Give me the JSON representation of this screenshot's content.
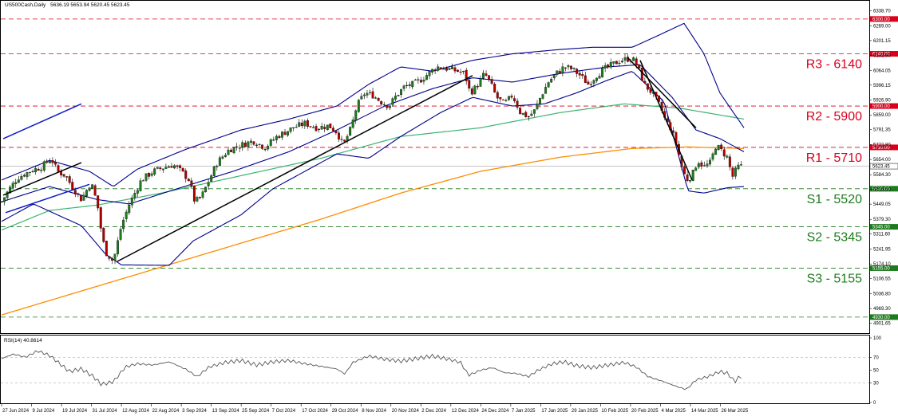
{
  "chart_data": {
    "type": "candlestick",
    "header": {
      "symbol": "US500Cash,Daily",
      "ohlc": "5636.19 5653.94 5620.45 5623.45"
    },
    "price_axis": {
      "ylim": [
        4860,
        6380
      ],
      "ticks": [
        "6338.70",
        "6269.00",
        "6201.15",
        "6132.60",
        "6064.05",
        "5996.15",
        "5926.90",
        "5859.00",
        "5791.35",
        "5722.80",
        "5654.00",
        "5584.30",
        "5516.60",
        "5449.05",
        "5379.30",
        "5311.60",
        "5241.95",
        "5174.10",
        "5106.55",
        "5036.80",
        "4969.30",
        "4901.65"
      ],
      "current_price_label": "5623.45"
    },
    "x_axis": {
      "tick_labels": [
        "27 Jun 2024",
        "9 Jul 2024",
        "19 Jul 2024",
        "31 Jul 2024",
        "12 Aug 2024",
        "22 Aug 2024",
        "3 Sep 2024",
        "13 Sep 2024",
        "25 Sep 2024",
        "7 Oct 2024",
        "17 Oct 2024",
        "29 Oct 2024",
        "8 Nov 2024",
        "20 Nov 2024",
        "2 Dec 2024",
        "12 Dec 2024",
        "24 Dec 2024",
        "7 Jan 2025",
        "17 Jan 2025",
        "29 Jan 2025",
        "10 Feb 2025",
        "20 Feb 2025",
        "4 Mar 2025",
        "14 Mar 2025",
        "26 Mar 2025"
      ]
    },
    "levels": [
      {
        "name": "R3 - 6140",
        "value": 6140,
        "axis_label": "6140.00",
        "color": "#d9001b"
      },
      {
        "name": "R2 - 5900",
        "value": 5900,
        "axis_label": "5900.00",
        "color": "#d9001b"
      },
      {
        "name": "R1 - 5710",
        "value": 5710,
        "axis_label": "5710.00",
        "color": "#d9001b"
      },
      {
        "name": "S1 - 5520",
        "value": 5520,
        "axis_label": "5520.00",
        "color": "#1e7a1e"
      },
      {
        "name": "S2 - 5345",
        "value": 5345,
        "axis_label": "5345.00",
        "color": "#1e7a1e"
      },
      {
        "name": "S3 - 5155",
        "value": 5155,
        "axis_label": "5155.00",
        "color": "#1e7a1e"
      },
      {
        "name": "",
        "value": 6300,
        "axis_label": "6300.00",
        "color": "#d9001b"
      },
      {
        "name": "",
        "value": 4930,
        "axis_label": "4930.00",
        "color": "#1e7a1e"
      }
    ],
    "close_path": [
      [
        0,
        5460
      ],
      [
        10,
        5520
      ],
      [
        20,
        5570
      ],
      [
        35,
        5600
      ],
      [
        50,
        5620
      ],
      [
        62,
        5660
      ],
      [
        70,
        5600
      ],
      [
        80,
        5580
      ],
      [
        90,
        5520
      ],
      [
        100,
        5470
      ],
      [
        112,
        5550
      ],
      [
        120,
        5450
      ],
      [
        125,
        5320
      ],
      [
        130,
        5230
      ],
      [
        140,
        5186
      ],
      [
        150,
        5350
      ],
      [
        160,
        5450
      ],
      [
        175,
        5560
      ],
      [
        190,
        5600
      ],
      [
        205,
        5620
      ],
      [
        215,
        5630
      ],
      [
        225,
        5600
      ],
      [
        235,
        5560
      ],
      [
        242,
        5460
      ],
      [
        250,
        5480
      ],
      [
        260,
        5560
      ],
      [
        270,
        5640
      ],
      [
        285,
        5700
      ],
      [
        300,
        5720
      ],
      [
        315,
        5740
      ],
      [
        330,
        5710
      ],
      [
        345,
        5760
      ],
      [
        355,
        5780
      ],
      [
        365,
        5800
      ],
      [
        380,
        5820
      ],
      [
        395,
        5800
      ],
      [
        410,
        5810
      ],
      [
        420,
        5780
      ],
      [
        428,
        5720
      ],
      [
        438,
        5800
      ],
      [
        445,
        5900
      ],
      [
        455,
        5960
      ],
      [
        465,
        5950
      ],
      [
        475,
        5920
      ],
      [
        485,
        5900
      ],
      [
        495,
        5950
      ],
      [
        505,
        5990
      ],
      [
        515,
        6000
      ],
      [
        525,
        6020
      ],
      [
        535,
        6050
      ],
      [
        545,
        6080
      ],
      [
        560,
        6070
      ],
      [
        572,
        6060
      ],
      [
        580,
        6050
      ],
      [
        587,
        5960
      ],
      [
        595,
        5990
      ],
      [
        605,
        6050
      ],
      [
        612,
        6010
      ],
      [
        620,
        5940
      ],
      [
        630,
        5910
      ],
      [
        640,
        5950
      ],
      [
        650,
        5870
      ],
      [
        660,
        5850
      ],
      [
        668,
        5880
      ],
      [
        675,
        5940
      ],
      [
        685,
        6010
      ],
      [
        695,
        6050
      ],
      [
        705,
        6080
      ],
      [
        715,
        6070
      ],
      [
        725,
        6040
      ],
      [
        735,
        6000
      ],
      [
        745,
        6040
      ],
      [
        755,
        6070
      ],
      [
        765,
        6090
      ],
      [
        775,
        6110
      ],
      [
        790,
        6120
      ],
      [
        797,
        6080
      ],
      [
        805,
        6000
      ],
      [
        815,
        5960
      ],
      [
        825,
        5900
      ],
      [
        832,
        5830
      ],
      [
        838,
        5800
      ],
      [
        845,
        5730
      ],
      [
        852,
        5620
      ],
      [
        858,
        5560
      ],
      [
        865,
        5580
      ],
      [
        872,
        5650
      ],
      [
        880,
        5620
      ],
      [
        888,
        5640
      ],
      [
        895,
        5720
      ],
      [
        903,
        5690
      ],
      [
        910,
        5660
      ],
      [
        915,
        5570
      ],
      [
        922,
        5620
      ],
      [
        928,
        5623
      ]
    ],
    "ma200": [
      [
        0,
        4940
      ],
      [
        100,
        5050
      ],
      [
        200,
        5160
      ],
      [
        300,
        5270
      ],
      [
        400,
        5380
      ],
      [
        500,
        5500
      ],
      [
        600,
        5600
      ],
      [
        700,
        5665
      ],
      [
        790,
        5705
      ],
      [
        860,
        5712
      ],
      [
        930,
        5705
      ]
    ],
    "ma100": [
      [
        0,
        5330
      ],
      [
        60,
        5420
      ],
      [
        120,
        5445
      ],
      [
        200,
        5500
      ],
      [
        300,
        5580
      ],
      [
        400,
        5660
      ],
      [
        500,
        5760
      ],
      [
        600,
        5800
      ],
      [
        700,
        5870
      ],
      [
        780,
        5910
      ],
      [
        850,
        5890
      ],
      [
        930,
        5840
      ]
    ],
    "bb_upper": [
      [
        0,
        5560
      ],
      [
        60,
        5650
      ],
      [
        110,
        5600
      ],
      [
        140,
        5530
      ],
      [
        170,
        5610
      ],
      [
        230,
        5700
      ],
      [
        300,
        5790
      ],
      [
        360,
        5840
      ],
      [
        420,
        5900
      ],
      [
        460,
        6000
      ],
      [
        500,
        6080
      ],
      [
        540,
        6060
      ],
      [
        590,
        6110
      ],
      [
        640,
        6140
      ],
      [
        700,
        6160
      ],
      [
        740,
        6170
      ],
      [
        790,
        6170
      ],
      [
        820,
        6220
      ],
      [
        855,
        6280
      ],
      [
        880,
        6140
      ],
      [
        900,
        5960
      ],
      [
        930,
        5800
      ]
    ],
    "bb_lower": [
      [
        0,
        5370
      ],
      [
        40,
        5450
      ],
      [
        100,
        5350
      ],
      [
        130,
        5220
      ],
      [
        150,
        5170
      ],
      [
        210,
        5168
      ],
      [
        240,
        5280
      ],
      [
        300,
        5400
      ],
      [
        340,
        5520
      ],
      [
        380,
        5600
      ],
      [
        420,
        5680
      ],
      [
        460,
        5660
      ],
      [
        500,
        5760
      ],
      [
        550,
        5870
      ],
      [
        590,
        5940
      ],
      [
        640,
        5900
      ],
      [
        680,
        5910
      ],
      [
        720,
        5960
      ],
      [
        760,
        6020
      ],
      [
        790,
        6060
      ],
      [
        830,
        5920
      ],
      [
        860,
        5510
      ],
      [
        880,
        5500
      ],
      [
        910,
        5525
      ],
      [
        930,
        5530
      ]
    ],
    "bb_mid": [
      [
        0,
        5460
      ],
      [
        60,
        5530
      ],
      [
        120,
        5470
      ],
      [
        160,
        5450
      ],
      [
        220,
        5520
      ],
      [
        290,
        5600
      ],
      [
        360,
        5690
      ],
      [
        420,
        5790
      ],
      [
        480,
        5900
      ],
      [
        540,
        5980
      ],
      [
        590,
        6030
      ],
      [
        640,
        6010
      ],
      [
        700,
        6050
      ],
      [
        760,
        6080
      ],
      [
        800,
        6090
      ],
      [
        840,
        5940
      ],
      [
        870,
        5790
      ],
      [
        900,
        5750
      ],
      [
        930,
        5690
      ]
    ],
    "trend_lines": [
      [
        [
          2,
          5490
        ],
        [
          100,
          5640
        ]
      ],
      [
        [
          2,
          5750
        ],
        [
          100,
          5910
        ]
      ],
      [
        [
          145,
          5186
        ],
        [
          590,
          6040
        ]
      ],
      [
        [
          785,
          6120
        ],
        [
          870,
          5800
        ]
      ],
      [
        [
          800,
          6110
        ],
        [
          865,
          5560
        ]
      ],
      [
        [
          5,
          5410
        ],
        [
          110,
          5540
        ]
      ]
    ],
    "rsi": {
      "label": "RSI(14) 40.8614",
      "ylim": [
        0,
        100
      ],
      "ticks": [
        "100",
        "70",
        "50",
        "30",
        "0"
      ],
      "values": [
        [
          0,
          68
        ],
        [
          15,
          75
        ],
        [
          30,
          70
        ],
        [
          45,
          80
        ],
        [
          60,
          73
        ],
        [
          75,
          58
        ],
        [
          85,
          48
        ],
        [
          100,
          52
        ],
        [
          115,
          40
        ],
        [
          125,
          28
        ],
        [
          140,
          32
        ],
        [
          155,
          55
        ],
        [
          170,
          60
        ],
        [
          190,
          58
        ],
        [
          210,
          63
        ],
        [
          230,
          52
        ],
        [
          245,
          40
        ],
        [
          260,
          55
        ],
        [
          280,
          62
        ],
        [
          300,
          65
        ],
        [
          320,
          58
        ],
        [
          340,
          63
        ],
        [
          360,
          65
        ],
        [
          380,
          60
        ],
        [
          400,
          56
        ],
        [
          420,
          52
        ],
        [
          430,
          44
        ],
        [
          440,
          62
        ],
        [
          460,
          72
        ],
        [
          480,
          67
        ],
        [
          500,
          64
        ],
        [
          520,
          68
        ],
        [
          540,
          72
        ],
        [
          560,
          67
        ],
        [
          575,
          62
        ],
        [
          585,
          42
        ],
        [
          600,
          50
        ],
        [
          615,
          54
        ],
        [
          630,
          46
        ],
        [
          645,
          45
        ],
        [
          660,
          40
        ],
        [
          672,
          50
        ],
        [
          690,
          60
        ],
        [
          705,
          63
        ],
        [
          720,
          57
        ],
        [
          740,
          54
        ],
        [
          760,
          58
        ],
        [
          780,
          62
        ],
        [
          795,
          55
        ],
        [
          810,
          40
        ],
        [
          830,
          32
        ],
        [
          845,
          25
        ],
        [
          858,
          20
        ],
        [
          870,
          35
        ],
        [
          885,
          40
        ],
        [
          900,
          48
        ],
        [
          910,
          45
        ],
        [
          918,
          32
        ],
        [
          925,
          40
        ],
        [
          930,
          41
        ]
      ]
    }
  }
}
